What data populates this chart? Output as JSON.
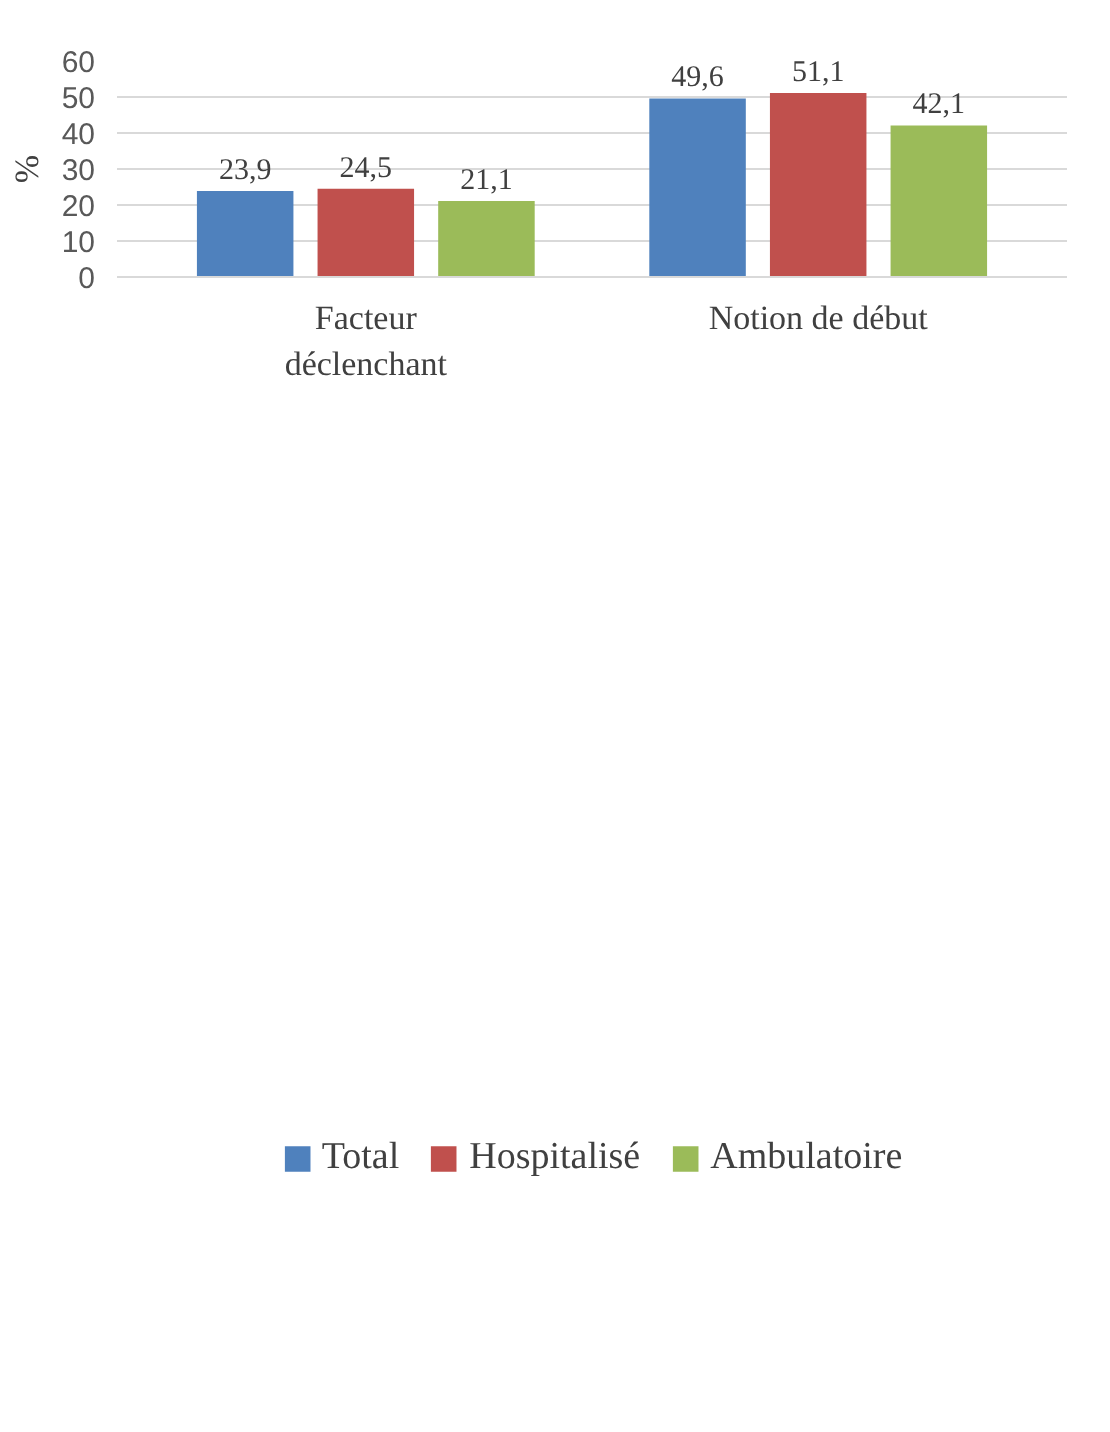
{
  "chart_data": {
    "type": "bar",
    "ylabel": "%",
    "categories": [
      "Facteur\ndéclenchant",
      "Notion de début"
    ],
    "series": [
      {
        "name": "Total",
        "color": "#4f81bd",
        "values": [
          23.9,
          49.6
        ],
        "value_labels": [
          "23,9",
          "49,6"
        ]
      },
      {
        "name": "Hospitalisé",
        "color": "#c0504d",
        "values": [
          24.5,
          51.1
        ],
        "value_labels": [
          "24,5",
          "51,1"
        ]
      },
      {
        "name": "Ambulatoire",
        "color": "#9bbb59",
        "values": [
          21.1,
          42.1
        ],
        "value_labels": [
          "21,1",
          "42,1"
        ]
      }
    ],
    "ylim": [
      0,
      60
    ],
    "yticks": [
      0,
      10,
      20,
      30,
      40,
      50,
      60
    ],
    "grid": "y",
    "legend": "bottom"
  }
}
